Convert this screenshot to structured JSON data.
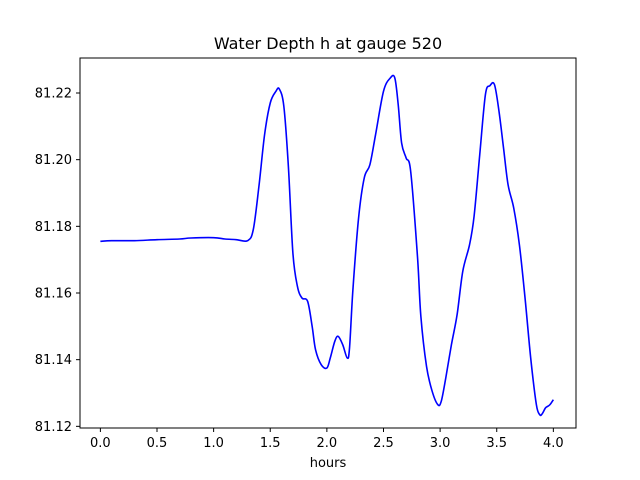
{
  "chart_data": {
    "type": "line",
    "title": "Water Depth h at gauge 520",
    "xlabel": "hours",
    "ylabel": "",
    "xlim": [
      -0.18,
      4.2
    ],
    "ylim": [
      81.1195,
      81.2305
    ],
    "x_ticks": [
      0.0,
      0.5,
      1.0,
      1.5,
      2.0,
      2.5,
      3.0,
      3.5,
      4.0
    ],
    "x_tick_labels": [
      "0.0",
      "0.5",
      "1.0",
      "1.5",
      "2.0",
      "2.5",
      "3.0",
      "3.5",
      "4.0"
    ],
    "y_ticks": [
      81.12,
      81.14,
      81.16,
      81.18,
      81.2,
      81.22
    ],
    "y_tick_labels": [
      "81.12",
      "81.14",
      "81.16",
      "81.18",
      "81.20",
      "81.22"
    ],
    "grid": false,
    "legend": "none",
    "series": [
      {
        "color": "#0000ff",
        "x": [
          0.0,
          0.1,
          0.3,
          0.5,
          0.7,
          0.8,
          1.0,
          1.1,
          1.2,
          1.3,
          1.35,
          1.4,
          1.45,
          1.5,
          1.55,
          1.58,
          1.62,
          1.66,
          1.7,
          1.74,
          1.78,
          1.83,
          1.87,
          1.9,
          1.95,
          2.0,
          2.03,
          2.07,
          2.1,
          2.14,
          2.18,
          2.2,
          2.23,
          2.28,
          2.33,
          2.38,
          2.43,
          2.5,
          2.56,
          2.6,
          2.63,
          2.66,
          2.7,
          2.74,
          2.8,
          2.83,
          2.88,
          2.93,
          2.98,
          3.01,
          3.05,
          3.1,
          3.15,
          3.2,
          3.26,
          3.3,
          3.35,
          3.4,
          3.44,
          3.48,
          3.52,
          3.56,
          3.6,
          3.65,
          3.7,
          3.75,
          3.8,
          3.85,
          3.88,
          3.9,
          3.93,
          3.95,
          3.97,
          4.0
        ],
        "y": [
          81.1755,
          81.1757,
          81.1757,
          81.176,
          81.1762,
          81.1765,
          81.1766,
          81.1762,
          81.176,
          81.1757,
          81.179,
          81.192,
          81.2075,
          81.217,
          81.2205,
          81.2212,
          81.216,
          81.198,
          81.172,
          81.162,
          81.1585,
          81.1575,
          81.15,
          81.143,
          81.1385,
          81.1375,
          81.1405,
          81.1455,
          81.147,
          81.1445,
          81.1405,
          81.1435,
          81.161,
          81.1825,
          81.1945,
          81.1985,
          81.2075,
          81.2205,
          81.2245,
          81.2245,
          81.2165,
          81.205,
          81.2005,
          81.1965,
          81.171,
          81.153,
          81.138,
          81.1305,
          81.1265,
          81.1275,
          81.1345,
          81.1445,
          81.1535,
          81.1665,
          81.1745,
          81.183,
          81.2015,
          81.2195,
          81.2222,
          81.2225,
          81.2145,
          81.2035,
          81.1925,
          81.1855,
          81.1745,
          81.1585,
          81.1405,
          81.1265,
          81.1235,
          81.1237,
          81.1255,
          81.126,
          81.1265,
          81.128
        ]
      }
    ]
  }
}
